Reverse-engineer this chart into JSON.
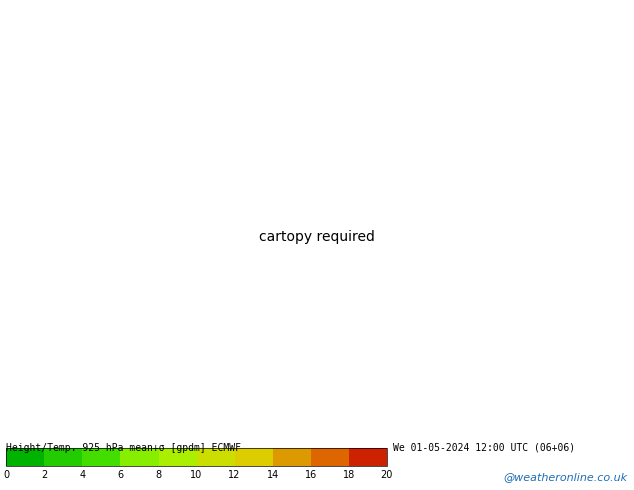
{
  "title_left": "Height/Temp. 925 hPa mean+σ [gpdm] ECMWF",
  "title_right": "We 01-05-2024 12:00 UTC (06+06)",
  "colorbar_ticks": [
    0,
    2,
    4,
    6,
    8,
    10,
    12,
    14,
    16,
    18,
    20
  ],
  "colorbar_colors": [
    "#00b300",
    "#22cc00",
    "#44dd00",
    "#88ee00",
    "#aaee00",
    "#ccdd00",
    "#ddcc00",
    "#dd9900",
    "#dd6600",
    "#cc2200",
    "#aa0000"
  ],
  "map_bg": "#00cc00",
  "contour_color": "#000000",
  "border_color": "#aaaaaa",
  "text_color_title": "#000000",
  "watermark_color": "#1e6db5",
  "watermark": "@weatheronline.co.uk",
  "fig_width": 6.34,
  "fig_height": 4.9,
  "dpi": 100,
  "extent": [
    -25,
    55,
    -40,
    40
  ],
  "contour_levels": [
    68,
    69,
    70,
    71,
    72,
    73,
    74,
    75,
    76,
    77,
    78,
    79,
    80,
    81,
    82
  ],
  "label_levels": [
    70,
    75,
    80
  ],
  "contour_linewidth": 1.0
}
